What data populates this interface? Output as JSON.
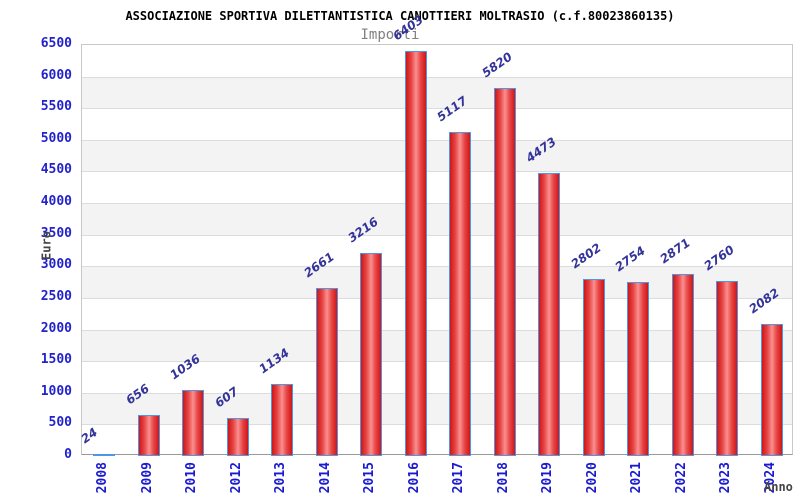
{
  "chart_data": {
    "type": "bar",
    "title": "ASSOCIAZIONE SPORTIVA DILETTANTISTICA CANOTTIERI MOLTRASIO (c.f.80023860135)",
    "subtitle": "Importi",
    "xlabel": "Anno",
    "ylabel": "Euro",
    "categories": [
      "2008",
      "2009",
      "2010",
      "2012",
      "2013",
      "2014",
      "2015",
      "2016",
      "2017",
      "2018",
      "2019",
      "2020",
      "2021",
      "2022",
      "2023",
      "2024"
    ],
    "values": [
      24,
      656,
      1036,
      607,
      1134,
      2661,
      3216,
      6403,
      5117,
      5820,
      4473,
      2802,
      2754,
      2871,
      2760,
      2082
    ],
    "ylim": [
      0,
      6500
    ],
    "ytick_step": 500,
    "grid": "horizontal",
    "legend": "none",
    "colors": {
      "bar_edge": "#d01616",
      "bar_center": "#fa9090",
      "bar_border": "#4d97e8",
      "tick_label": "#2222cc",
      "value_label": "#333399",
      "band": "#f3f3f3",
      "gridline": "#dcdcdc",
      "title": "#000000",
      "subtitle": "#808080",
      "axis_title": "#444444",
      "background": "#ffffff"
    }
  }
}
